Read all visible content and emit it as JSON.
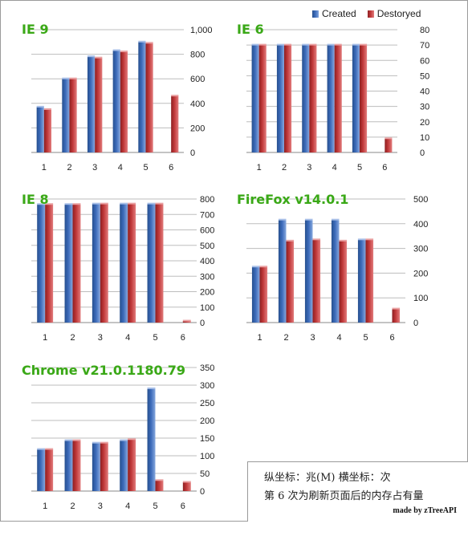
{
  "legend": {
    "created_label": "Created",
    "destroyed_label": "Destoryed",
    "created_color": "#3b6ab9",
    "destroyed_color": "#c1393a"
  },
  "colors": {
    "gridline": "#bdbdbd",
    "title_green": "#3aa817"
  },
  "chart_data": [
    {
      "type": "bar",
      "title": "IE 9",
      "categories": [
        "1",
        "2",
        "3",
        "4",
        "5",
        "6"
      ],
      "series": [
        {
          "name": "Created",
          "values": [
            370,
            600,
            780,
            830,
            900,
            null
          ]
        },
        {
          "name": "Destoryed",
          "values": [
            350,
            600,
            770,
            820,
            890,
            460
          ]
        }
      ],
      "ylim": [
        0,
        1000
      ],
      "yticks": [
        0,
        200,
        400,
        600,
        800,
        1000
      ],
      "ytick_labels": [
        "0",
        "200",
        "400",
        "600",
        "800",
        "1,000"
      ],
      "grid": true
    },
    {
      "type": "bar",
      "title": "IE 6",
      "categories": [
        "1",
        "2",
        "3",
        "4",
        "5",
        "6"
      ],
      "series": [
        {
          "name": "Created",
          "values": [
            70,
            70,
            70,
            70,
            70,
            null
          ]
        },
        {
          "name": "Destoryed",
          "values": [
            70,
            70,
            70,
            70,
            70,
            9
          ]
        }
      ],
      "ylim": [
        0,
        80
      ],
      "yticks": [
        0,
        10,
        20,
        30,
        40,
        50,
        60,
        70,
        80
      ],
      "ytick_labels": [
        "0",
        "10",
        "20",
        "30",
        "40",
        "50",
        "60",
        "70",
        "80"
      ],
      "grid": true
    },
    {
      "type": "bar",
      "title": "IE 8",
      "categories": [
        "1",
        "2",
        "3",
        "4",
        "5",
        "6"
      ],
      "series": [
        {
          "name": "Created",
          "values": [
            765,
            765,
            768,
            768,
            768,
            null
          ]
        },
        {
          "name": "Destoryed",
          "values": [
            765,
            765,
            768,
            768,
            768,
            10
          ]
        }
      ],
      "ylim": [
        0,
        800
      ],
      "yticks": [
        0,
        100,
        200,
        300,
        400,
        500,
        600,
        700,
        800
      ],
      "ytick_labels": [
        "0",
        "100",
        "200",
        "300",
        "400",
        "500",
        "600",
        "700",
        "800"
      ],
      "grid": true
    },
    {
      "type": "bar",
      "title": "FireFox v14.0.1",
      "categories": [
        "1",
        "2",
        "3",
        "4",
        "5",
        "6"
      ],
      "series": [
        {
          "name": "Created",
          "values": [
            225,
            415,
            415,
            415,
            335,
            null
          ]
        },
        {
          "name": "Destoryed",
          "values": [
            225,
            330,
            335,
            330,
            335,
            55
          ]
        }
      ],
      "ylim": [
        0,
        500
      ],
      "yticks": [
        0,
        100,
        200,
        300,
        400,
        500
      ],
      "ytick_labels": [
        "0",
        "100",
        "200",
        "300",
        "400",
        "500"
      ],
      "grid": true
    },
    {
      "type": "bar",
      "title": "Chrome v21.0.1180.79",
      "categories": [
        "1",
        "2",
        "3",
        "4",
        "5",
        "6"
      ],
      "series": [
        {
          "name": "Created",
          "values": [
            118,
            143,
            136,
            143,
            290,
            null
          ]
        },
        {
          "name": "Destoryed",
          "values": [
            118,
            143,
            136,
            146,
            30,
            25
          ]
        }
      ],
      "ylim": [
        0,
        350
      ],
      "yticks": [
        0,
        50,
        100,
        150,
        200,
        250,
        300,
        350
      ],
      "ytick_labels": [
        "0",
        "50",
        "100",
        "150",
        "200",
        "250",
        "300",
        "350"
      ],
      "grid": true
    }
  ],
  "note": {
    "line1": "纵坐标：兆(M)    横坐标：次",
    "line2": "第 6 次为刷新页面后的内存占有量",
    "credit": "made by zTreeAPI"
  }
}
